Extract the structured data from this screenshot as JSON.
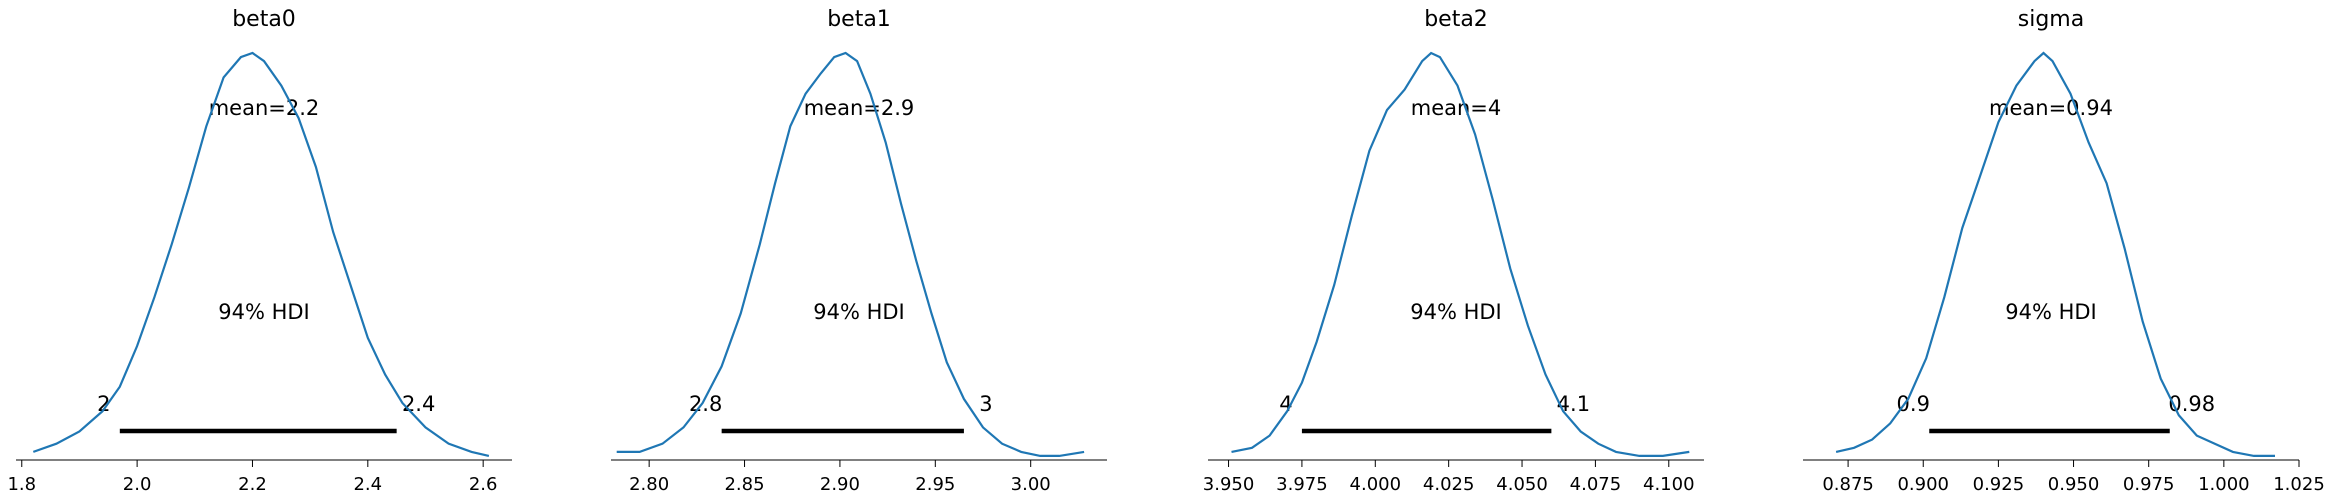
{
  "chart_data": [
    {
      "type": "area",
      "title": "beta0",
      "mean_label": "mean=2.2",
      "hdi_text": "94% HDI",
      "hdi": {
        "low": 1.97,
        "high": 2.45,
        "low_label": "2",
        "high_label": "2.4"
      },
      "xlim": [
        1.79,
        2.65
      ],
      "ticks": [
        1.8,
        2.0,
        2.2,
        2.4,
        2.6
      ],
      "tick_labels": [
        "1.8",
        "2.0",
        "2.2",
        "2.4",
        "2.6"
      ],
      "density": {
        "x": [
          1.82,
          1.86,
          1.9,
          1.94,
          1.97,
          2.0,
          2.03,
          2.06,
          2.09,
          2.12,
          2.15,
          2.18,
          2.2,
          2.22,
          2.25,
          2.28,
          2.31,
          2.34,
          2.37,
          2.4,
          2.43,
          2.46,
          2.5,
          2.54,
          2.58,
          2.61
        ],
        "y": [
          0.02,
          0.04,
          0.07,
          0.12,
          0.18,
          0.28,
          0.4,
          0.53,
          0.67,
          0.82,
          0.94,
          0.99,
          1.0,
          0.98,
          0.92,
          0.84,
          0.72,
          0.56,
          0.43,
          0.3,
          0.21,
          0.14,
          0.08,
          0.04,
          0.02,
          0.01
        ]
      }
    },
    {
      "type": "area",
      "title": "beta1",
      "mean_label": "mean=2.9",
      "hdi_text": "94% HDI",
      "hdi": {
        "low": 2.838,
        "high": 2.965,
        "low_label": "2.8",
        "high_label": "3"
      },
      "xlim": [
        2.78,
        3.04
      ],
      "ticks": [
        2.8,
        2.85,
        2.9,
        2.95,
        3.0
      ],
      "tick_labels": [
        "2.80",
        "2.85",
        "2.90",
        "2.95",
        "3.00"
      ],
      "density": {
        "x": [
          2.783,
          2.795,
          2.807,
          2.818,
          2.828,
          2.838,
          2.848,
          2.858,
          2.866,
          2.874,
          2.882,
          2.89,
          2.897,
          2.903,
          2.909,
          2.916,
          2.924,
          2.932,
          2.94,
          2.948,
          2.956,
          2.965,
          2.975,
          2.985,
          2.995,
          3.005,
          3.015,
          3.028
        ],
        "y": [
          0.02,
          0.02,
          0.04,
          0.08,
          0.14,
          0.23,
          0.36,
          0.53,
          0.68,
          0.82,
          0.9,
          0.95,
          0.99,
          1.0,
          0.98,
          0.9,
          0.78,
          0.63,
          0.49,
          0.36,
          0.24,
          0.15,
          0.08,
          0.04,
          0.02,
          0.01,
          0.01,
          0.02
        ]
      }
    },
    {
      "type": "area",
      "title": "beta2",
      "mean_label": "mean=4",
      "hdi_text": "94% HDI",
      "hdi": {
        "low": 3.975,
        "high": 4.06,
        "low_label": "4",
        "high_label": "4.1"
      },
      "xlim": [
        3.943,
        4.112
      ],
      "ticks": [
        3.95,
        3.975,
        4.0,
        4.025,
        4.05,
        4.075,
        4.1
      ],
      "tick_labels": [
        "3.950",
        "3.975",
        "4.000",
        "4.025",
        "4.050",
        "4.075",
        "4.100"
      ],
      "density": {
        "x": [
          3.951,
          3.958,
          3.964,
          3.97,
          3.975,
          3.98,
          3.986,
          3.992,
          3.998,
          4.004,
          4.01,
          4.016,
          4.019,
          4.022,
          4.028,
          4.034,
          4.04,
          4.046,
          4.052,
          4.058,
          4.064,
          4.07,
          4.076,
          4.082,
          4.09,
          4.098,
          4.107
        ],
        "y": [
          0.02,
          0.03,
          0.06,
          0.12,
          0.19,
          0.29,
          0.43,
          0.6,
          0.76,
          0.86,
          0.91,
          0.98,
          1.0,
          0.99,
          0.92,
          0.8,
          0.64,
          0.47,
          0.33,
          0.21,
          0.12,
          0.07,
          0.04,
          0.02,
          0.01,
          0.01,
          0.02
        ]
      }
    },
    {
      "type": "area",
      "title": "sigma",
      "mean_label": "mean=0.94",
      "hdi_text": "94% HDI",
      "hdi": {
        "low": 0.902,
        "high": 0.982,
        "low_label": "0.9",
        "high_label": "0.98"
      },
      "xlim": [
        0.86,
        1.025
      ],
      "ticks": [
        0.875,
        0.9,
        0.925,
        0.95,
        0.975,
        1.0,
        1.025
      ],
      "tick_labels": [
        "0.875",
        "0.900",
        "0.925",
        "0.950",
        "0.975",
        "1.000",
        "1.025"
      ],
      "density": {
        "x": [
          0.871,
          0.877,
          0.883,
          0.889,
          0.895,
          0.901,
          0.907,
          0.913,
          0.919,
          0.925,
          0.931,
          0.937,
          0.94,
          0.943,
          0.949,
          0.955,
          0.961,
          0.967,
          0.973,
          0.979,
          0.985,
          0.991,
          0.997,
          1.003,
          1.01,
          1.017
        ],
        "y": [
          0.02,
          0.03,
          0.05,
          0.09,
          0.15,
          0.25,
          0.4,
          0.57,
          0.7,
          0.83,
          0.92,
          0.98,
          1.0,
          0.98,
          0.9,
          0.78,
          0.68,
          0.52,
          0.34,
          0.2,
          0.11,
          0.06,
          0.04,
          0.02,
          0.01,
          0.01
        ]
      }
    }
  ]
}
